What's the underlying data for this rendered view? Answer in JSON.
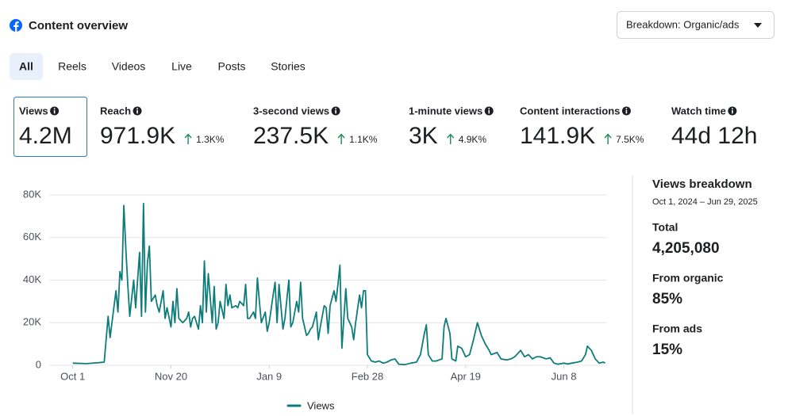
{
  "header": {
    "title": "Content overview",
    "dropdown": "Breakdown: Organic/ads"
  },
  "tabs": [
    "All",
    "Reels",
    "Videos",
    "Live",
    "Posts",
    "Stories"
  ],
  "metrics": [
    {
      "label": "Views",
      "value": "4.2M"
    },
    {
      "label": "Reach",
      "value": "971.9K",
      "change": "1.3K%"
    },
    {
      "label": "3-second views",
      "value": "237.5K",
      "change": "1.1K%"
    },
    {
      "label": "1-minute views",
      "value": "3K",
      "change": "4.9K%"
    },
    {
      "label": "Content interactions",
      "value": "141.9K",
      "change": "7.5K%"
    },
    {
      "label": "Watch time",
      "value": "44d 12h"
    }
  ],
  "breakdown": {
    "title": "Views breakdown",
    "dates": "Oct 1, 2024 – Jun 29, 2025",
    "items": [
      {
        "label": "Total",
        "value": "4,205,080"
      },
      {
        "label": "From organic",
        "value": "85%"
      },
      {
        "label": "From ads",
        "value": "15%"
      }
    ]
  },
  "chart_data": {
    "type": "line",
    "x": [
      0,
      7,
      13,
      16,
      18,
      19,
      22,
      23,
      24,
      25,
      26,
      27,
      28,
      29,
      31,
      32,
      34,
      35,
      36,
      37,
      38,
      39,
      40,
      42,
      43,
      44,
      46,
      47,
      48,
      50,
      51,
      52,
      53,
      54,
      56,
      58,
      59,
      60,
      61,
      62,
      64,
      65,
      66,
      67,
      68,
      69,
      71,
      72,
      73,
      74,
      75,
      77,
      78,
      79,
      80,
      81,
      83,
      84,
      85,
      87,
      88,
      89,
      90,
      92,
      93,
      94,
      95,
      96,
      98,
      99,
      100,
      102,
      103,
      104,
      105,
      107,
      108,
      110,
      111,
      112,
      114,
      115,
      116,
      117,
      119,
      120,
      121,
      122,
      124,
      125,
      126,
      128,
      129,
      130,
      131,
      133,
      134,
      135,
      136,
      137,
      139,
      140,
      142,
      143,
      144,
      146,
      147,
      148,
      149,
      150,
      152,
      154,
      156,
      158,
      160,
      162,
      164,
      166,
      169,
      172,
      175,
      177,
      179,
      180,
      181,
      183,
      185,
      188,
      189,
      190,
      192,
      193,
      195,
      196,
      198,
      200,
      202,
      204,
      206,
      208,
      210,
      212,
      213,
      216,
      218,
      221,
      223,
      225,
      228,
      230,
      232,
      234,
      236,
      238,
      241,
      243,
      245,
      247,
      250,
      252,
      254,
      257,
      259,
      261,
      262,
      264,
      266,
      268,
      270,
      271
    ],
    "series": [
      {
        "name": "Views",
        "color": "#0e7c7b",
        "values": [
          1000,
          800,
          1200,
          1500,
          23000,
          13000,
          35000,
          25000,
          44000,
          40000,
          75000,
          55000,
          38000,
          23000,
          40000,
          27000,
          53000,
          23000,
          76000,
          25000,
          48000,
          56000,
          30000,
          33000,
          28000,
          25000,
          35000,
          22000,
          27000,
          18000,
          30000,
          20000,
          36000,
          22000,
          20000,
          22000,
          25000,
          18000,
          22000,
          23000,
          17000,
          28000,
          20000,
          49000,
          25000,
          43000,
          20000,
          37000,
          17000,
          20000,
          30000,
          22000,
          38000,
          28000,
          33000,
          27000,
          28000,
          27000,
          30000,
          28000,
          38000,
          22000,
          22000,
          25000,
          22000,
          41000,
          30000,
          20000,
          25000,
          16000,
          20000,
          33000,
          39000,
          20000,
          38000,
          17000,
          22000,
          40000,
          18000,
          20000,
          30000,
          25000,
          39000,
          22000,
          14000,
          15000,
          17000,
          18000,
          25000,
          12000,
          18000,
          28000,
          27000,
          15000,
          28000,
          35000,
          30000,
          38000,
          47000,
          8000,
          36000,
          22000,
          18000,
          12000,
          20000,
          33000,
          27000,
          35000,
          35000,
          5000,
          2000,
          1500,
          2000,
          1000,
          1500,
          2500,
          3000,
          500,
          300,
          1000,
          1500,
          5000,
          15000,
          19000,
          5000,
          2000,
          2000,
          3000,
          18000,
          22000,
          15000,
          3000,
          2000,
          9000,
          8000,
          4000,
          5000,
          12000,
          20000,
          14000,
          10000,
          7000,
          5000,
          6000,
          3000,
          2500,
          3000,
          4000,
          7000,
          4000,
          5000,
          3000,
          4000,
          4000,
          3000,
          3500,
          1000,
          500,
          1000,
          600,
          1000,
          1500,
          2000,
          5000,
          9000,
          7000,
          3000,
          1000,
          1500,
          1000
        ]
      }
    ],
    "xlim": [
      -12,
      272
    ],
    "xticks": [
      {
        "value": 0,
        "label": "Oct 1"
      },
      {
        "value": 50,
        "label": "Nov 20"
      },
      {
        "value": 100,
        "label": "Jan 9"
      },
      {
        "value": 150,
        "label": "Feb 28"
      },
      {
        "value": 200,
        "label": "Apr 19"
      },
      {
        "value": 250,
        "label": "Jun 8"
      }
    ],
    "ylim": [
      0,
      80000
    ],
    "yticks": [
      0,
      {
        "value": 20000,
        "label": "20K"
      },
      {
        "value": 40000,
        "label": "40K"
      },
      {
        "value": 60000,
        "label": "60K"
      },
      {
        "value": 80000,
        "label": "80K"
      }
    ],
    "grid": true,
    "legend": "bottom"
  }
}
